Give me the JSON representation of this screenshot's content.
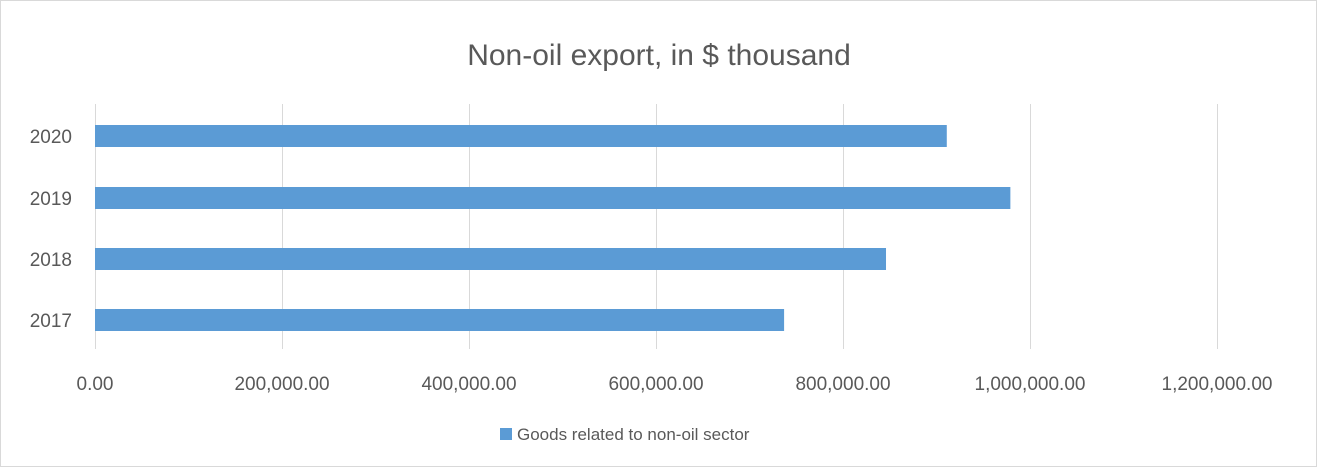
{
  "chart_data": {
    "type": "bar",
    "orientation": "horizontal",
    "title": "Non-oil export, in $ thousand",
    "categories": [
      "2017",
      "2018",
      "2019",
      "2020"
    ],
    "series": [
      {
        "name": "Goods related to non-oil sector",
        "values": [
          737000,
          846000,
          979000,
          911000
        ]
      }
    ],
    "xlim": [
      0,
      1200000
    ],
    "x_ticks": [
      0,
      200000,
      400000,
      600000,
      800000,
      1000000,
      1200000
    ],
    "x_tick_labels": [
      "0.00",
      "200,000.00",
      "400,000.00",
      "600,000.00",
      "800,000.00",
      "1,000,000.00",
      "1,200,000.00"
    ],
    "grid": true,
    "legend_position": "bottom",
    "colors": {
      "bar": "#5b9bd5",
      "grid": "#d9d9d9",
      "text": "#595959"
    }
  }
}
